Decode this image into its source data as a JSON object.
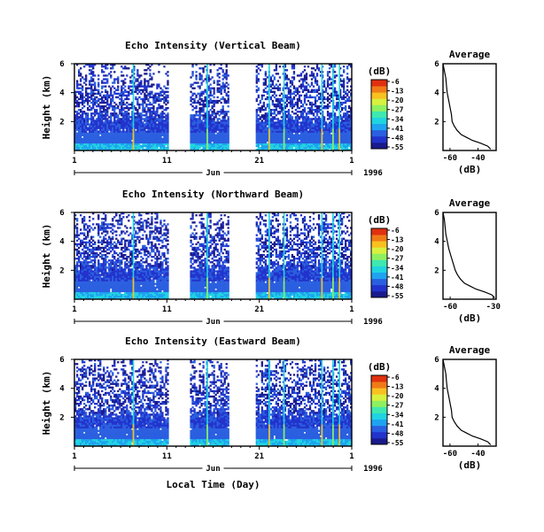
{
  "figure": {
    "xlabel": "Local Time (Day)",
    "month_label": "Jun",
    "year_label": "1996",
    "ylabel": "Height (km)"
  },
  "colormap": [
    "#1a1a8c",
    "#2233cc",
    "#2a5fe0",
    "#1fa3f0",
    "#20d4e0",
    "#3fe8b0",
    "#8ef060",
    "#d8f040",
    "#f8c020",
    "#f07a18",
    "#e03010"
  ],
  "chart_data": [
    {
      "type": "heatmap",
      "title": "Echo Intensity (Vertical Beam)",
      "ylabel": "Height (km)",
      "xlabel": "",
      "x_ticks": [
        "1",
        "11",
        "21",
        "1"
      ],
      "y_ticks": [
        "6",
        "4",
        "2"
      ],
      "ylim": [
        0,
        6
      ],
      "xlim": [
        1,
        31
      ],
      "gaps": [
        [
          11.2,
          13.5
        ],
        [
          17.8,
          20.6
        ]
      ],
      "spikes": [
        7.3,
        15.3,
        22.0,
        23.6,
        27.7,
        28.9,
        29.6
      ],
      "colorbar": {
        "label": "(dB)",
        "ticks": [
          "-6",
          "-13",
          "-20",
          "-27",
          "-34",
          "-41",
          "-48",
          "-55"
        ]
      },
      "average": {
        "title": "Average",
        "xlabel": "(dB)",
        "x_ticks": [
          "-60",
          "-40"
        ],
        "y_ticks": [
          "6",
          "4",
          "2"
        ],
        "xlim": [
          -65,
          -27
        ],
        "ylim": [
          0,
          6
        ],
        "profile": [
          [
            0.1,
            -31
          ],
          [
            0.3,
            -33
          ],
          [
            0.5,
            -38
          ],
          [
            0.7,
            -44
          ],
          [
            0.9,
            -48
          ],
          [
            1.1,
            -52
          ],
          [
            1.4,
            -55
          ],
          [
            1.7,
            -57
          ],
          [
            2.0,
            -58.5
          ],
          [
            2.5,
            -59
          ],
          [
            3.0,
            -60
          ],
          [
            3.5,
            -61
          ],
          [
            4.0,
            -62
          ],
          [
            4.5,
            -62.5
          ],
          [
            5.0,
            -63
          ],
          [
            5.5,
            -64
          ],
          [
            6.0,
            -65
          ]
        ]
      }
    },
    {
      "type": "heatmap",
      "title": "Echo Intensity (Northward Beam)",
      "ylabel": "Height (km)",
      "xlabel": "",
      "x_ticks": [
        "1",
        "11",
        "21",
        "1"
      ],
      "y_ticks": [
        "6",
        "4",
        "2"
      ],
      "ylim": [
        0,
        6
      ],
      "xlim": [
        1,
        31
      ],
      "gaps": [
        [
          11.2,
          13.5
        ],
        [
          17.8,
          20.6
        ]
      ],
      "spikes": [
        7.3,
        15.3,
        22.0,
        23.6,
        27.7,
        28.9,
        29.6
      ],
      "colorbar": {
        "label": "(dB)",
        "ticks": [
          "-6",
          "-13",
          "-20",
          "-27",
          "-34",
          "-41",
          "-48",
          "-55"
        ]
      },
      "average": {
        "title": "Average",
        "xlabel": "(dB)",
        "x_ticks": [
          "-60",
          "-30"
        ],
        "y_ticks": [
          "6",
          "4",
          "2"
        ],
        "xlim": [
          -65,
          -28
        ],
        "ylim": [
          0,
          6
        ],
        "profile": [
          [
            0.1,
            -29
          ],
          [
            0.3,
            -31
          ],
          [
            0.5,
            -36
          ],
          [
            0.7,
            -42
          ],
          [
            0.9,
            -46
          ],
          [
            1.1,
            -50
          ],
          [
            1.4,
            -53
          ],
          [
            1.7,
            -55
          ],
          [
            2.0,
            -56.5
          ],
          [
            2.5,
            -58
          ],
          [
            3.0,
            -59.5
          ],
          [
            3.5,
            -61
          ],
          [
            4.0,
            -62
          ],
          [
            4.5,
            -63
          ],
          [
            5.0,
            -63.5
          ],
          [
            5.5,
            -64
          ],
          [
            6.0,
            -65
          ]
        ]
      }
    },
    {
      "type": "heatmap",
      "title": "Echo Intensity (Eastward Beam)",
      "ylabel": "Height (km)",
      "xlabel": "Local Time (Day)",
      "x_ticks": [
        "1",
        "11",
        "21",
        "1"
      ],
      "y_ticks": [
        "6",
        "4",
        "2"
      ],
      "ylim": [
        0,
        6
      ],
      "xlim": [
        1,
        31
      ],
      "gaps": [
        [
          11.2,
          13.5
        ],
        [
          17.8,
          20.6
        ]
      ],
      "spikes": [
        7.3,
        15.3,
        22.0,
        23.6,
        27.7,
        28.9,
        29.6
      ],
      "colorbar": {
        "label": "(dB)",
        "ticks": [
          "-6",
          "-13",
          "-20",
          "-27",
          "-34",
          "-41",
          "-48",
          "-55"
        ]
      },
      "average": {
        "title": "Average",
        "xlabel": "(dB)",
        "x_ticks": [
          "-60",
          "-40"
        ],
        "y_ticks": [
          "6",
          "4",
          "2"
        ],
        "xlim": [
          -65,
          -27
        ],
        "ylim": [
          0,
          6
        ],
        "profile": [
          [
            0.1,
            -31
          ],
          [
            0.3,
            -33
          ],
          [
            0.5,
            -38
          ],
          [
            0.7,
            -44
          ],
          [
            0.9,
            -48
          ],
          [
            1.1,
            -52
          ],
          [
            1.4,
            -55
          ],
          [
            1.7,
            -57
          ],
          [
            2.0,
            -58.5
          ],
          [
            2.5,
            -59
          ],
          [
            3.0,
            -60
          ],
          [
            3.5,
            -61
          ],
          [
            4.0,
            -62
          ],
          [
            4.5,
            -62.5
          ],
          [
            5.0,
            -63
          ],
          [
            5.5,
            -64
          ],
          [
            6.0,
            -65
          ]
        ]
      }
    }
  ]
}
